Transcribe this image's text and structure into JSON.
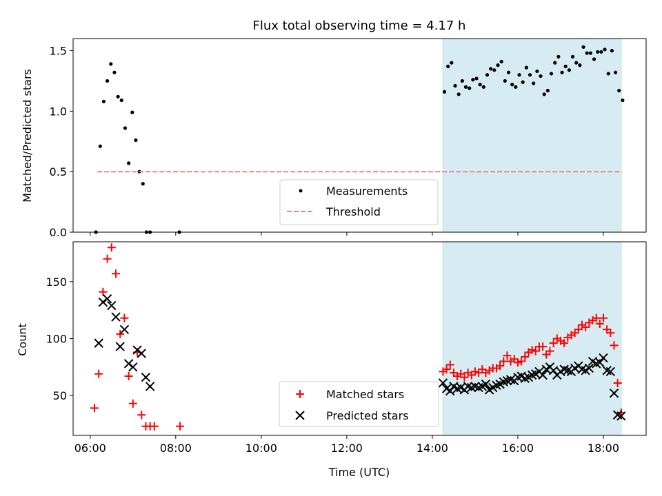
{
  "title": "Flux total observing time = 4.17 h",
  "xlabel": "Time (UTC)",
  "xticks": [
    "06:00",
    "08:00",
    "10:00",
    "12:00",
    "14:00",
    "16:00",
    "18:00"
  ],
  "colors": {
    "measurement": "#000000",
    "threshold": "#f08080",
    "matched": "#ff0000",
    "predicted": "#000000",
    "highlight": "#add8e6"
  },
  "chart_data": [
    {
      "type": "scatter",
      "ylabel": "Matched/Predicted stars",
      "yticks": [
        "0.0",
        "0.5",
        "1.0",
        "1.5"
      ],
      "xlim": [
        "05:36",
        "19:00"
      ],
      "ylim": [
        0,
        1.6
      ],
      "highlight_span": [
        "14:14",
        "18:26"
      ],
      "legend": {
        "position": "bottom-center",
        "entries": [
          "Measurements",
          "Threshold"
        ]
      },
      "threshold": {
        "y": 0.5,
        "x": [
          "06:10",
          "18:26"
        ]
      },
      "series": [
        {
          "name": "Measurements",
          "marker": "dot",
          "points": [
            [
              "06:08",
              0.0
            ],
            [
              "06:14",
              0.71
            ],
            [
              "06:19",
              1.08
            ],
            [
              "06:24",
              1.25
            ],
            [
              "06:29",
              1.39
            ],
            [
              "06:34",
              1.32
            ],
            [
              "06:39",
              1.12
            ],
            [
              "06:44",
              1.09
            ],
            [
              "06:49",
              0.86
            ],
            [
              "06:54",
              0.57
            ],
            [
              "06:59",
              0.99
            ],
            [
              "07:04",
              0.76
            ],
            [
              "07:09",
              0.5
            ],
            [
              "07:14",
              0.4
            ],
            [
              "07:19",
              0.0
            ],
            [
              "07:24",
              0.0
            ],
            [
              "08:05",
              0.0
            ],
            [
              "14:17",
              1.16
            ],
            [
              "14:22",
              1.37
            ],
            [
              "14:27",
              1.4
            ],
            [
              "14:32",
              1.21
            ],
            [
              "14:37",
              1.14
            ],
            [
              "14:42",
              1.25
            ],
            [
              "14:47",
              1.2
            ],
            [
              "14:52",
              1.19
            ],
            [
              "14:57",
              1.26
            ],
            [
              "15:02",
              1.27
            ],
            [
              "15:07",
              1.22
            ],
            [
              "15:12",
              1.2
            ],
            [
              "15:17",
              1.3
            ],
            [
              "15:22",
              1.35
            ],
            [
              "15:27",
              1.34
            ],
            [
              "15:32",
              1.38
            ],
            [
              "15:37",
              1.41
            ],
            [
              "15:42",
              1.25
            ],
            [
              "15:47",
              1.32
            ],
            [
              "15:52",
              1.22
            ],
            [
              "15:57",
              1.2
            ],
            [
              "16:02",
              1.3
            ],
            [
              "16:07",
              1.24
            ],
            [
              "16:12",
              1.36
            ],
            [
              "16:17",
              1.3
            ],
            [
              "16:22",
              1.23
            ],
            [
              "16:27",
              1.33
            ],
            [
              "16:32",
              1.29
            ],
            [
              "16:37",
              1.14
            ],
            [
              "16:42",
              1.17
            ],
            [
              "16:47",
              1.31
            ],
            [
              "16:52",
              1.4
            ],
            [
              "16:57",
              1.45
            ],
            [
              "17:02",
              1.32
            ],
            [
              "17:07",
              1.37
            ],
            [
              "17:12",
              1.34
            ],
            [
              "17:17",
              1.45
            ],
            [
              "17:22",
              1.4
            ],
            [
              "17:27",
              1.38
            ],
            [
              "17:32",
              1.53
            ],
            [
              "17:37",
              1.48
            ],
            [
              "17:42",
              1.48
            ],
            [
              "17:47",
              1.43
            ],
            [
              "17:52",
              1.49
            ],
            [
              "17:57",
              1.49
            ],
            [
              "18:02",
              1.51
            ],
            [
              "18:07",
              1.31
            ],
            [
              "18:12",
              1.5
            ],
            [
              "18:17",
              1.32
            ],
            [
              "18:22",
              1.17
            ],
            [
              "18:27",
              1.09
            ]
          ]
        }
      ]
    },
    {
      "type": "scatter",
      "ylabel": "Count",
      "yticks": [
        "50",
        "100",
        "150"
      ],
      "xlim": [
        "05:36",
        "19:00"
      ],
      "ylim": [
        15,
        185
      ],
      "highlight_span": [
        "14:14",
        "18:26"
      ],
      "legend": {
        "position": "bottom-center",
        "entries": [
          "Matched stars",
          "Predicted stars"
        ]
      },
      "series": [
        {
          "name": "Matched stars",
          "marker": "plus",
          "points": [
            [
              "06:06",
              39
            ],
            [
              "06:12",
              69
            ],
            [
              "06:18",
              141
            ],
            [
              "06:24",
              170
            ],
            [
              "06:30",
              180
            ],
            [
              "06:36",
              157
            ],
            [
              "06:42",
              104
            ],
            [
              "06:48",
              118
            ],
            [
              "06:54",
              67
            ],
            [
              "07:00",
              43
            ],
            [
              "07:06",
              88
            ],
            [
              "07:12",
              33
            ],
            [
              "07:18",
              23
            ],
            [
              "07:24",
              23
            ],
            [
              "07:30",
              23
            ],
            [
              "08:06",
              23
            ],
            [
              "14:15",
              71
            ],
            [
              "14:20",
              73
            ],
            [
              "14:25",
              77
            ],
            [
              "14:30",
              70
            ],
            [
              "14:35",
              67
            ],
            [
              "14:40",
              69
            ],
            [
              "14:45",
              66
            ],
            [
              "14:50",
              70
            ],
            [
              "14:55",
              68
            ],
            [
              "15:00",
              71
            ],
            [
              "15:05",
              70
            ],
            [
              "15:10",
              73
            ],
            [
              "15:15",
              70
            ],
            [
              "15:20",
              72
            ],
            [
              "15:25",
              74
            ],
            [
              "15:30",
              74
            ],
            [
              "15:35",
              76
            ],
            [
              "15:40",
              80
            ],
            [
              "15:45",
              85
            ],
            [
              "15:50",
              80
            ],
            [
              "15:55",
              82
            ],
            [
              "16:00",
              79
            ],
            [
              "16:05",
              80
            ],
            [
              "16:10",
              84
            ],
            [
              "16:15",
              88
            ],
            [
              "16:20",
              90
            ],
            [
              "16:25",
              89
            ],
            [
              "16:30",
              93
            ],
            [
              "16:35",
              93
            ],
            [
              "16:40",
              86
            ],
            [
              "16:45",
              89
            ],
            [
              "16:50",
              96
            ],
            [
              "16:55",
              100
            ],
            [
              "17:00",
              98
            ],
            [
              "17:05",
              96
            ],
            [
              "17:10",
              101
            ],
            [
              "17:15",
              103
            ],
            [
              "17:20",
              105
            ],
            [
              "17:25",
              108
            ],
            [
              "17:30",
              112
            ],
            [
              "17:35",
              110
            ],
            [
              "17:40",
              114
            ],
            [
              "17:45",
              116
            ],
            [
              "17:50",
              118
            ],
            [
              "17:55",
              113
            ],
            [
              "18:00",
              118
            ],
            [
              "18:05",
              108
            ],
            [
              "18:10",
              105
            ],
            [
              "18:15",
              94
            ],
            [
              "18:20",
              61
            ],
            [
              "18:25",
              35
            ]
          ]
        },
        {
          "name": "Predicted stars",
          "marker": "x",
          "points": [
            [
              "06:12",
              96
            ],
            [
              "06:18",
              132
            ],
            [
              "06:24",
              135
            ],
            [
              "06:30",
              129
            ],
            [
              "06:36",
              119
            ],
            [
              "06:42",
              93
            ],
            [
              "06:48",
              108
            ],
            [
              "06:54",
              78
            ],
            [
              "07:00",
              75
            ],
            [
              "07:06",
              90
            ],
            [
              "07:12",
              87
            ],
            [
              "07:18",
              66
            ],
            [
              "07:24",
              58
            ],
            [
              "14:15",
              61
            ],
            [
              "14:20",
              56
            ],
            [
              "14:25",
              54
            ],
            [
              "14:30",
              58
            ],
            [
              "14:35",
              56
            ],
            [
              "14:40",
              57
            ],
            [
              "14:45",
              55
            ],
            [
              "14:50",
              58
            ],
            [
              "14:55",
              57
            ],
            [
              "15:00",
              58
            ],
            [
              "15:05",
              57
            ],
            [
              "15:10",
              58
            ],
            [
              "15:15",
              60
            ],
            [
              "15:20",
              55
            ],
            [
              "15:25",
              57
            ],
            [
              "15:30",
              59
            ],
            [
              "15:35",
              60
            ],
            [
              "15:40",
              62
            ],
            [
              "15:45",
              63
            ],
            [
              "15:50",
              64
            ],
            [
              "15:55",
              63
            ],
            [
              "16:00",
              66
            ],
            [
              "16:05",
              67
            ],
            [
              "16:10",
              65
            ],
            [
              "16:15",
              66
            ],
            [
              "16:20",
              68
            ],
            [
              "16:25",
              69
            ],
            [
              "16:30",
              71
            ],
            [
              "16:35",
              68
            ],
            [
              "16:40",
              73
            ],
            [
              "16:45",
              75
            ],
            [
              "16:50",
              72
            ],
            [
              "16:55",
              68
            ],
            [
              "17:00",
              71
            ],
            [
              "17:05",
              73
            ],
            [
              "17:10",
              72
            ],
            [
              "17:15",
              71
            ],
            [
              "17:20",
              74
            ],
            [
              "17:25",
              76
            ],
            [
              "17:30",
              73
            ],
            [
              "17:35",
              72
            ],
            [
              "17:40",
              74
            ],
            [
              "17:45",
              80
            ],
            [
              "17:50",
              78
            ],
            [
              "17:55",
              79
            ],
            [
              "18:00",
              83
            ],
            [
              "18:05",
              72
            ],
            [
              "18:10",
              71
            ],
            [
              "18:15",
              52
            ],
            [
              "18:20",
              33
            ],
            [
              "18:25",
              32
            ]
          ]
        }
      ]
    }
  ]
}
